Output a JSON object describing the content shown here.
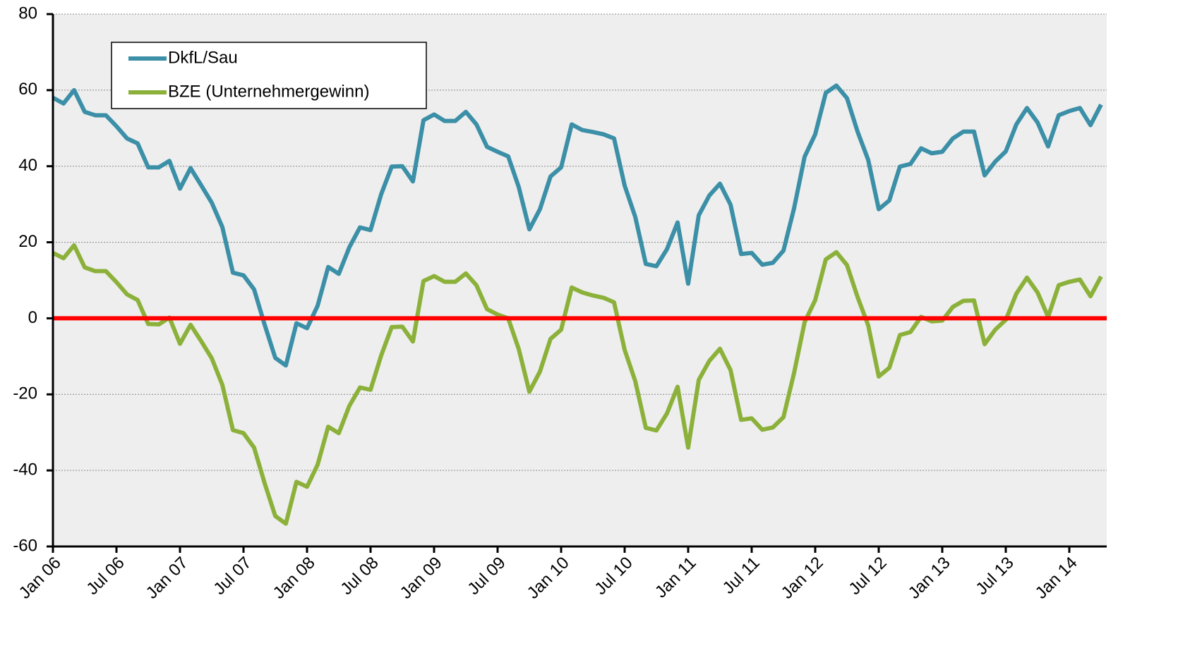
{
  "chart_data": {
    "type": "line",
    "categories": [
      "Jan 06",
      null,
      null,
      null,
      null,
      null,
      "Jul 06",
      null,
      null,
      null,
      null,
      null,
      "Jan 07",
      null,
      null,
      null,
      null,
      null,
      "Jul 07",
      null,
      null,
      null,
      null,
      null,
      "Jan 08",
      null,
      null,
      null,
      null,
      null,
      "Jul 08",
      null,
      null,
      null,
      null,
      null,
      "Jan 09",
      null,
      null,
      null,
      null,
      null,
      "Jul 09",
      null,
      null,
      null,
      null,
      null,
      "Jan 10",
      null,
      null,
      null,
      null,
      null,
      "Jul 10",
      null,
      null,
      null,
      null,
      null,
      "Jan 11",
      null,
      null,
      null,
      null,
      null,
      "Jul 11",
      null,
      null,
      null,
      null,
      null,
      "Jan 12",
      null,
      null,
      null,
      null,
      null,
      "Jul 12",
      null,
      null,
      null,
      null,
      null,
      "Jan 13",
      null,
      null,
      null,
      null,
      null,
      "Jul 13",
      null,
      null,
      null,
      null,
      null,
      "Jan 14",
      null,
      null,
      null
    ],
    "series": [
      {
        "name": "DkfL/Sau",
        "color": "#3b8fa7",
        "values": [
          58,
          56.5,
          60,
          54.3,
          53.4,
          53.4,
          50.5,
          47.3,
          46,
          39.7,
          39.7,
          41.4,
          34.1,
          39.5,
          35,
          30.4,
          24,
          12,
          11.3,
          7.6,
          -1.7,
          -10.4,
          -12.4,
          -1.3,
          -2.6,
          3.3,
          13.5,
          11.7,
          18.7,
          23.9,
          23.2,
          32.6,
          39.9,
          40,
          36,
          52.1,
          53.6,
          51.9,
          51.9,
          54.3,
          51,
          45.1,
          43.8,
          42.6,
          34.5,
          23.4,
          28.7,
          37.3,
          39.7,
          51,
          49.5,
          49,
          48.4,
          47.3,
          34.9,
          26.7,
          14.3,
          13.7,
          18.2,
          25.2,
          9.1,
          27.1,
          32.3,
          35.4,
          29.9,
          16.9,
          17.2,
          14.1,
          14.6,
          17.8,
          28.9,
          42.5,
          48.4,
          59.3,
          61.2,
          57.9,
          49.1,
          41.7,
          28.7,
          31,
          39.9,
          40.6,
          44.7,
          43.4,
          43.8,
          47.3,
          49.1,
          49.1,
          37.6,
          41.2,
          43.9,
          51,
          55.3,
          51.5,
          45.2,
          53.4,
          54.5,
          55.3,
          50.8,
          56.2
        ]
      },
      {
        "name": "BZE (Unternehmergewinn)",
        "color": "#8cb13a",
        "values": [
          17.2,
          15.8,
          19.2,
          13.4,
          12.4,
          12.4,
          9.5,
          6.3,
          4.8,
          -1.5,
          -1.6,
          0.2,
          -6.7,
          -1.7,
          -6,
          -10.5,
          -17.5,
          -29.4,
          -30.2,
          -34,
          -43.4,
          -52,
          -54,
          -43,
          -44.3,
          -38.5,
          -28.5,
          -30.2,
          -23,
          -18.2,
          -18.8,
          -9.8,
          -2.3,
          -2.2,
          -6.1,
          9.8,
          11.1,
          9.6,
          9.6,
          11.8,
          8.7,
          2.4,
          1,
          0,
          -8.1,
          -19.3,
          -14,
          -5.4,
          -3,
          8.1,
          6.8,
          6,
          5.4,
          4.2,
          -8.3,
          -16.5,
          -28.8,
          -29.5,
          -25,
          -18,
          -34,
          -16.2,
          -11.2,
          -8,
          -13.6,
          -26.7,
          -26.3,
          -29.3,
          -28.7,
          -26,
          -14.4,
          -1,
          4.8,
          15.5,
          17.4,
          14,
          5.6,
          -1.8,
          -15.3,
          -13,
          -4.4,
          -3.6,
          0.4,
          -0.8,
          -0.6,
          3,
          4.6,
          4.7,
          -6.8,
          -3,
          -0.4,
          6.5,
          10.7,
          6.8,
          0.4,
          8.7,
          9.6,
          10.2,
          5.8,
          11
        ]
      }
    ],
    "ylim": [
      -60,
      80
    ],
    "yticks": [
      -60,
      -40,
      -20,
      0,
      20,
      40,
      60,
      80
    ],
    "grid": true,
    "reference_line": {
      "value": 0,
      "color": "#ff0000"
    },
    "legend": "upper left"
  }
}
